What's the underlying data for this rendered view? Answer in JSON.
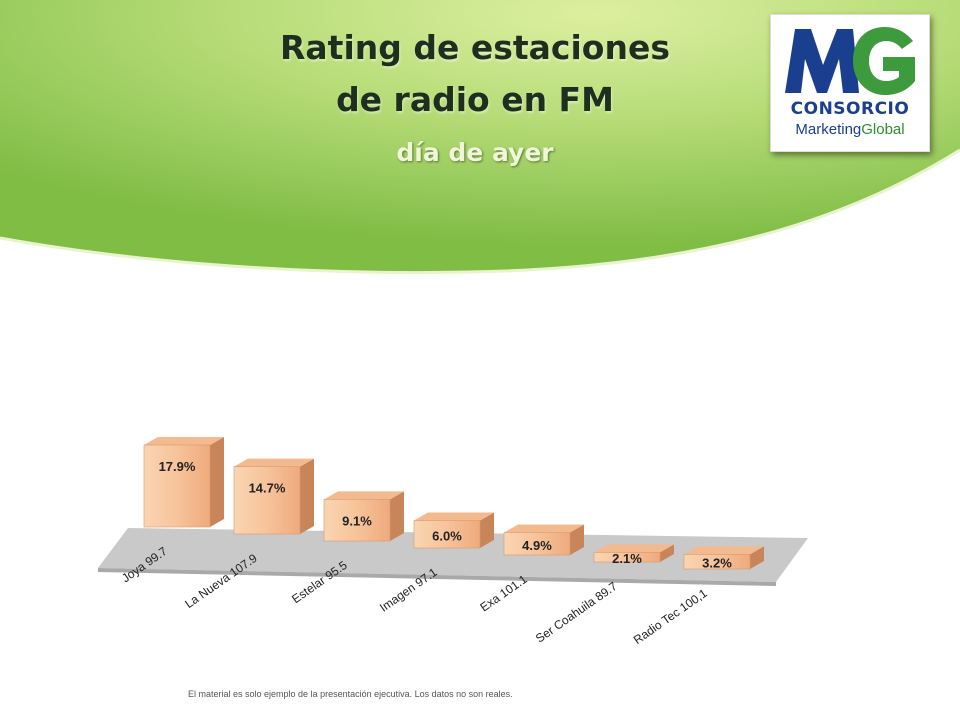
{
  "slide": {
    "title_line1": "Rating de estaciones",
    "title_line2": "de radio en FM",
    "subtitle": "día de ayer",
    "footnote": "El material es solo ejemplo de la presentación ejecutiva.  Los datos no son reales."
  },
  "logo": {
    "letters": "MG",
    "line1": "CONSORCIO",
    "line2_a": "Marketing",
    "line2_b": "Global",
    "colors": {
      "blue": "#1a3f8f",
      "green": "#3d9a3d"
    }
  },
  "chart_data": {
    "type": "bar",
    "style": "3d",
    "categories": [
      "Joya 99.7",
      "La Nueva  107.9",
      "Estelar 95.5",
      "Imagen 97.1",
      "Exa 101.1",
      "Ser Coahuila 89.7",
      "Radio Tec 100,1"
    ],
    "values": [
      17.9,
      14.7,
      9.1,
      6.0,
      4.9,
      2.1,
      3.2
    ],
    "data_labels": [
      "17.9%",
      "14.7%",
      "9.1%",
      "6.0%",
      "4.9%",
      "2.1%",
      "3.2%"
    ],
    "unit": "%",
    "ylim": [
      0,
      20
    ],
    "grid": false,
    "legend": "none",
    "bar_color": "#f7c9a2",
    "floor_color": "#c8c8c8"
  }
}
